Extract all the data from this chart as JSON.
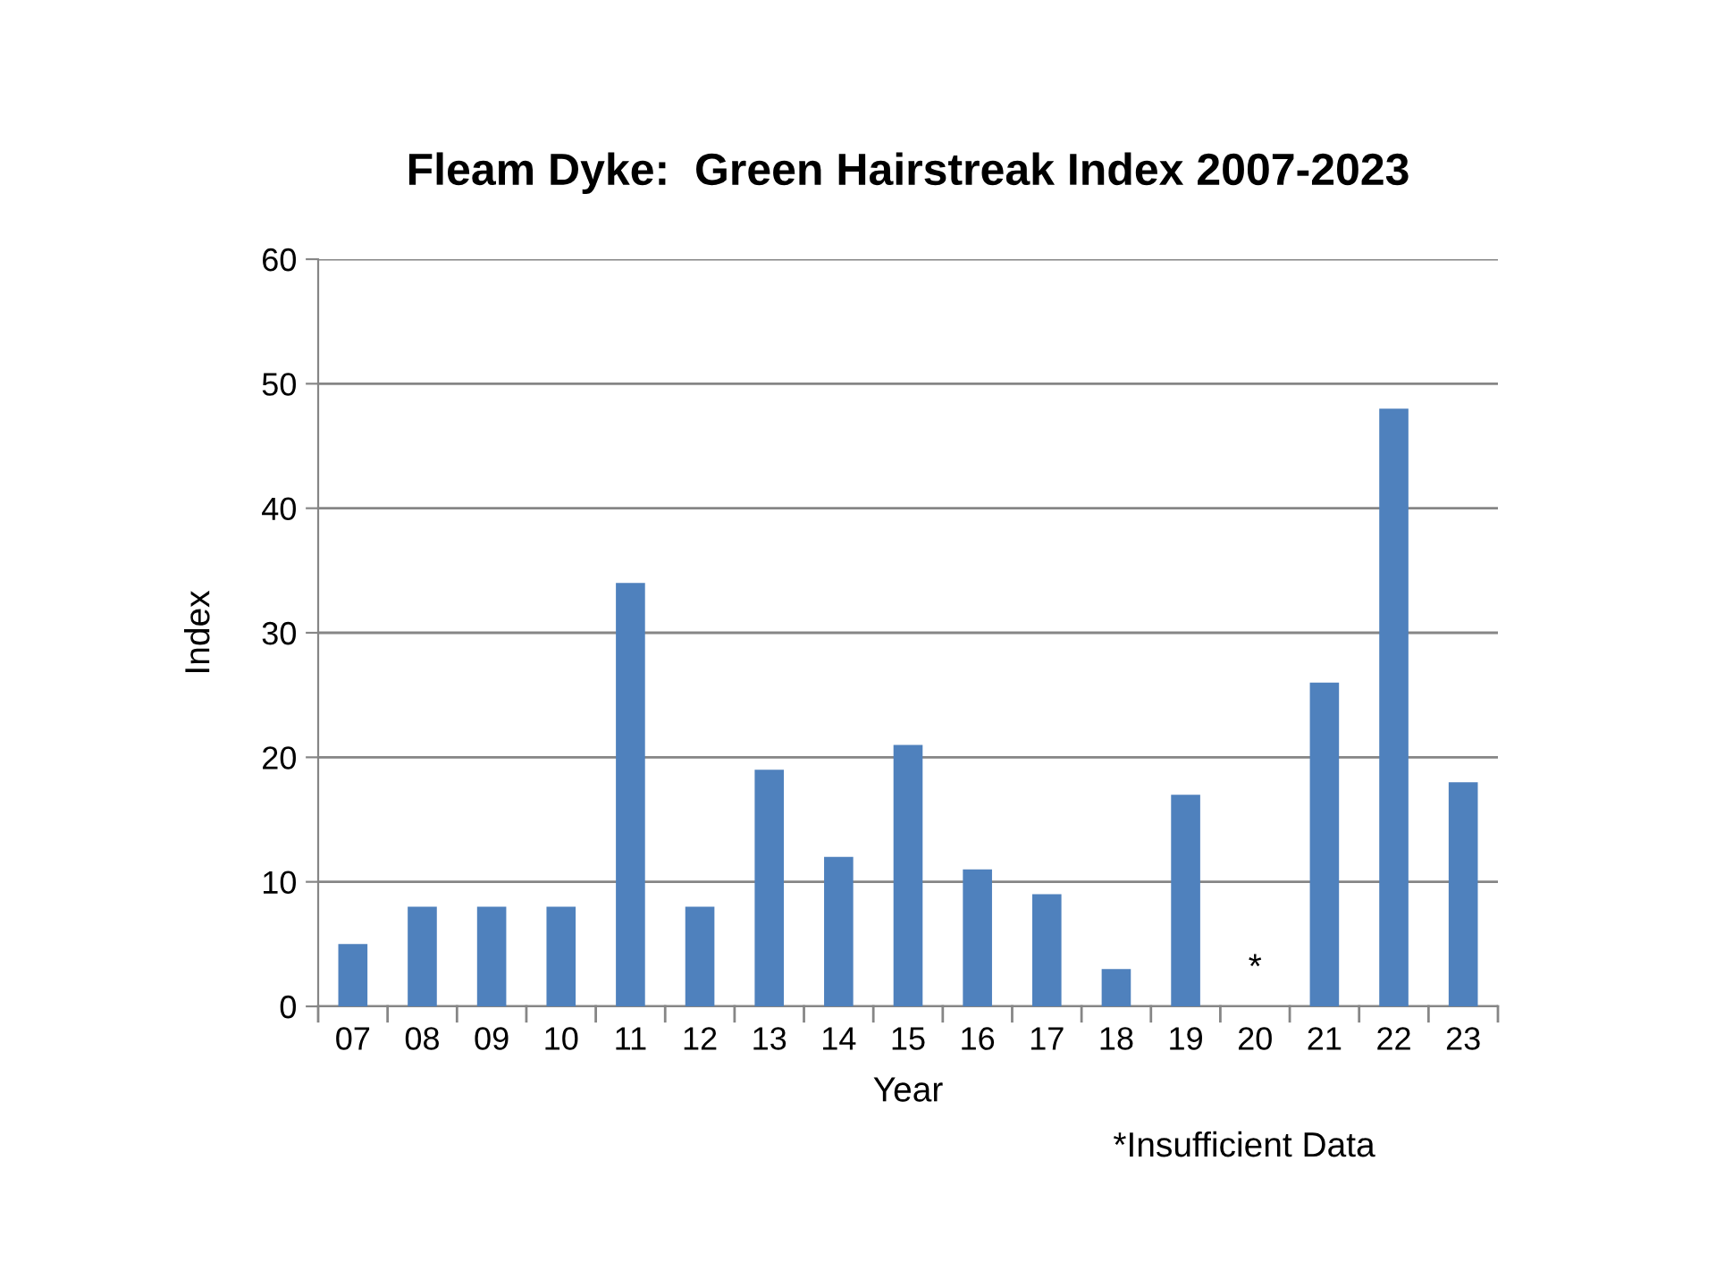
{
  "chart_data": {
    "type": "bar",
    "title": "Fleam Dyke:  Green Hairstreak Index 2007-2023",
    "xlabel": "Year",
    "ylabel": "Index",
    "categories": [
      "07",
      "08",
      "09",
      "10",
      "11",
      "12",
      "13",
      "14",
      "15",
      "16",
      "17",
      "18",
      "19",
      "20",
      "21",
      "22",
      "23"
    ],
    "series": [
      {
        "color": "#4f81bd",
        "values": [
          5,
          8,
          8,
          8,
          34,
          8,
          19,
          12,
          21,
          11,
          9,
          3,
          17,
          null,
          26,
          48,
          18
        ]
      }
    ],
    "ylim": [
      0,
      60
    ],
    "yticks": [
      0,
      10,
      20,
      30,
      40,
      50,
      60
    ],
    "grid": "y",
    "annotations": [
      "*",
      "*Insufficient Data"
    ]
  }
}
